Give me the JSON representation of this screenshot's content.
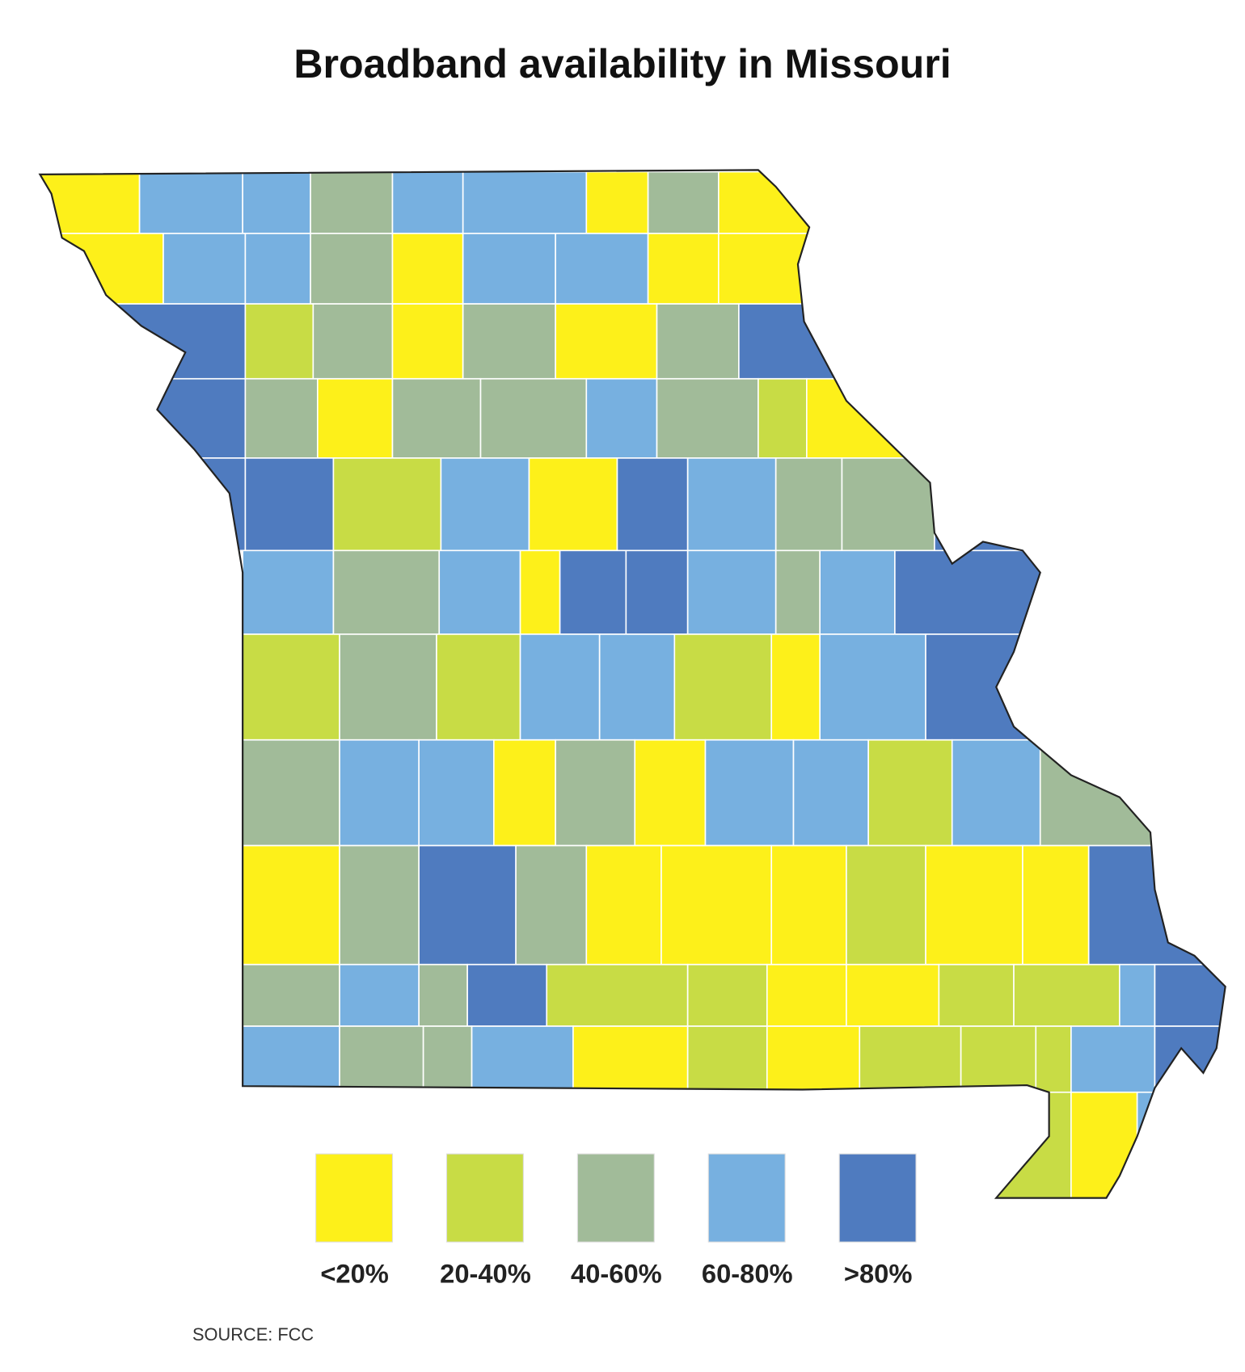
{
  "title": "Broadband availability in Missouri",
  "legend": [
    {
      "label": "<20%",
      "color": "#fdf01a"
    },
    {
      "label": "20-40%",
      "color": "#c8dc45"
    },
    {
      "label": "40-60%",
      "color": "#a1bb99"
    },
    {
      "label": "60-80%",
      "color": "#77b0e0"
    },
    {
      "label": ">80%",
      "color": "#4f7bbf"
    }
  ],
  "source": "SOURCE: FCC"
}
